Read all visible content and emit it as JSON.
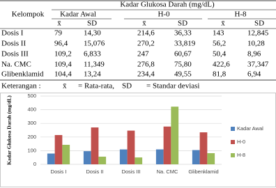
{
  "table": {
    "group_header": "Kelompok",
    "title": "Kadar Glukosa Darah (mg/dL)",
    "columns": [
      "Kadar Awal",
      "H-0",
      "H-8"
    ],
    "stat_labels": [
      "x̄",
      "SD"
    ],
    "rows": [
      [
        "Dosis I",
        "79",
        "14,30",
        "214,6",
        "36,33",
        "143",
        "12,845"
      ],
      [
        "Dosis II",
        "96,4",
        "15,076",
        "270,2",
        "33,819",
        "56,2",
        "10,28"
      ],
      [
        "Dosis III",
        "109,2",
        "6,833",
        "247",
        "60,67",
        "50,4",
        "8,96"
      ],
      [
        "Na. CMC",
        "109,4",
        "11,349",
        "276,8",
        "75,80",
        "422,6",
        "37,347"
      ],
      [
        "Glibenklamid",
        "104,4",
        "13,24",
        "234,4",
        "49,55",
        "81,8",
        "6,94"
      ]
    ]
  },
  "note": {
    "label": "Keterangan  :",
    "items": [
      {
        "symbol": "x̄",
        "text": "= Rata-rata,"
      },
      {
        "symbol": "SD",
        "text": "= Standar deviasi"
      }
    ]
  },
  "chart_data": {
    "type": "bar",
    "y_label": "Kadar Glukosa Darah (mg/dL)",
    "categories": [
      "Dosis I",
      "Dosis II",
      "Dosis III",
      "Na. CMC",
      "Glibenklamid"
    ],
    "series": [
      {
        "name": "Kadar Awal",
        "color": "#4f81bd",
        "values": [
          79,
          96.4,
          109.2,
          109.4,
          104.4
        ]
      },
      {
        "name": "H-0",
        "color": "#c0504d",
        "values": [
          214.6,
          270.2,
          247,
          276.8,
          234.4
        ]
      },
      {
        "name": "H-8",
        "color": "#9bbb59",
        "values": [
          143,
          56.2,
          50.4,
          422.6,
          81.8
        ]
      }
    ],
    "ylim": [
      0,
      500
    ],
    "yticks": [
      0,
      100,
      200,
      300,
      400,
      500
    ],
    "grid": true,
    "legend": "right"
  }
}
